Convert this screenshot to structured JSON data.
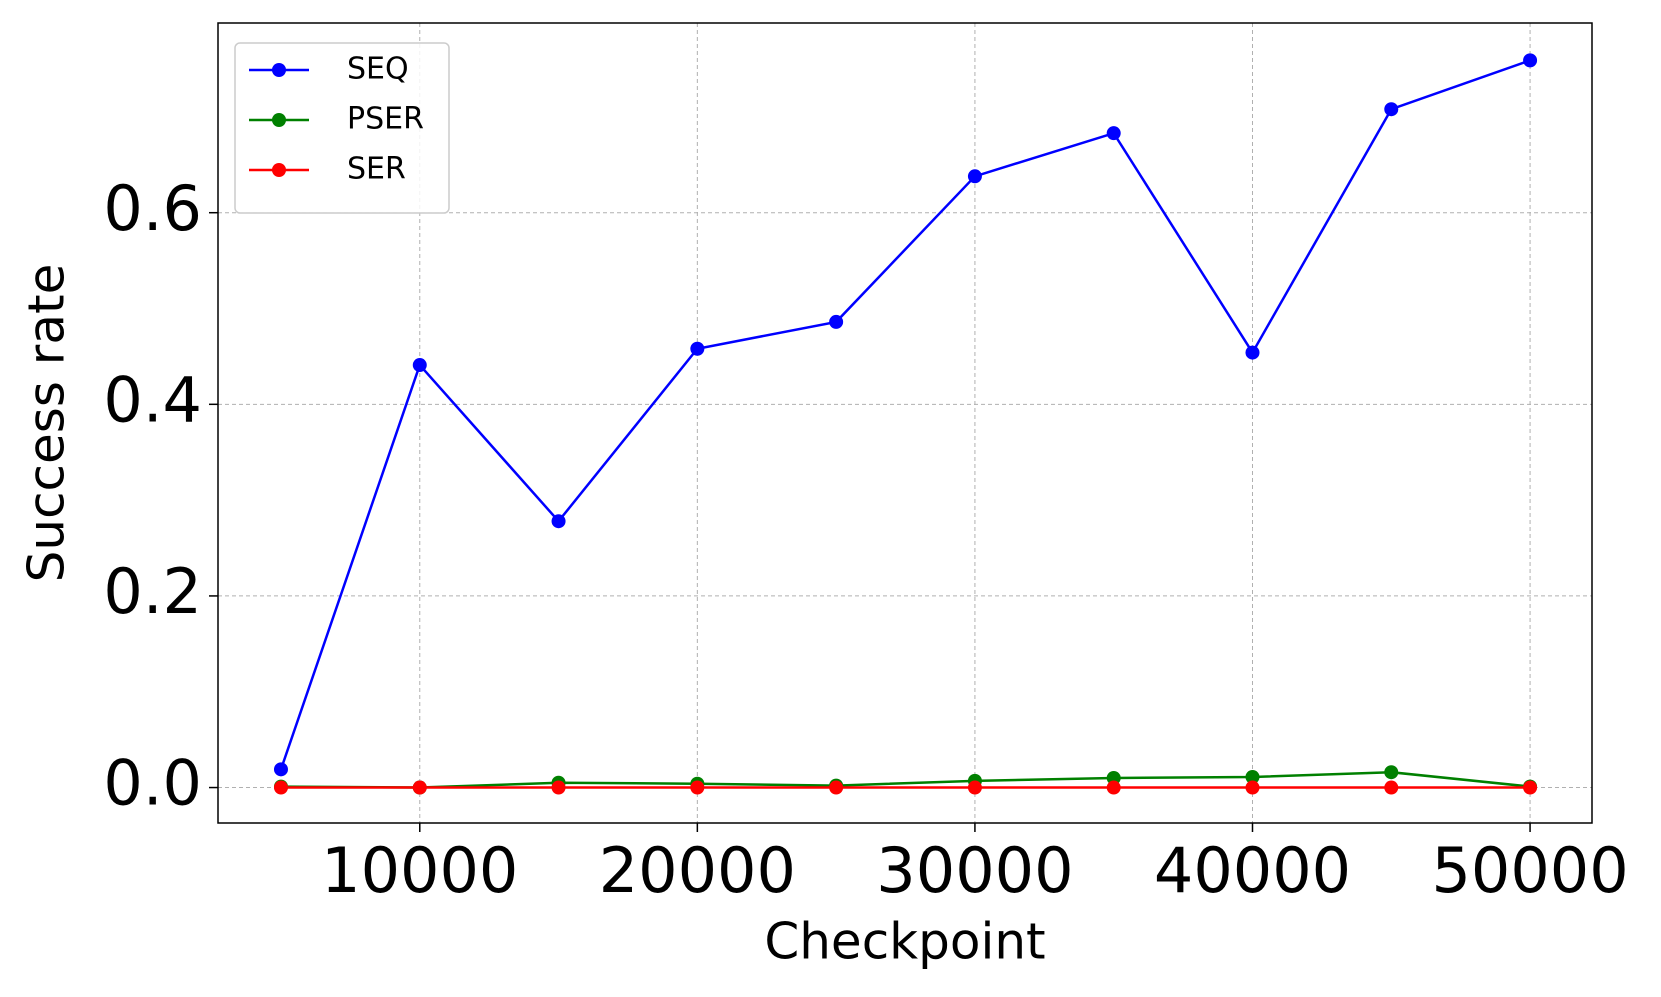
{
  "chart_data": {
    "type": "line",
    "x": [
      5000,
      10000,
      15000,
      20000,
      25000,
      30000,
      35000,
      40000,
      45000,
      50000
    ],
    "series": [
      {
        "name": "SEQ",
        "color": "#0000ff",
        "values": [
          0.019,
          0.441,
          0.278,
          0.458,
          0.486,
          0.638,
          0.683,
          0.454,
          0.708,
          0.759
        ]
      },
      {
        "name": "PSER",
        "color": "#008000",
        "values": [
          0.001,
          0,
          0.005,
          0.004,
          0.002,
          0.007,
          0.01,
          0.011,
          0.016,
          0.001
        ]
      },
      {
        "name": "SER",
        "color": "#ff0000",
        "values": [
          0,
          0,
          0,
          0,
          0,
          0,
          0,
          0,
          0,
          0
        ]
      }
    ],
    "xlabel": "Checkpoint",
    "ylabel": "Success rate",
    "xlim": [
      2731,
      52231
    ],
    "ylim": [
      -0.037,
      0.798
    ],
    "xticks": [
      10000,
      20000,
      30000,
      40000,
      50000
    ],
    "yticks": [
      {
        "value": 0,
        "label": "0.0"
      },
      0.2,
      0.4,
      0.6
    ],
    "grid": true,
    "legend": "upper left"
  }
}
